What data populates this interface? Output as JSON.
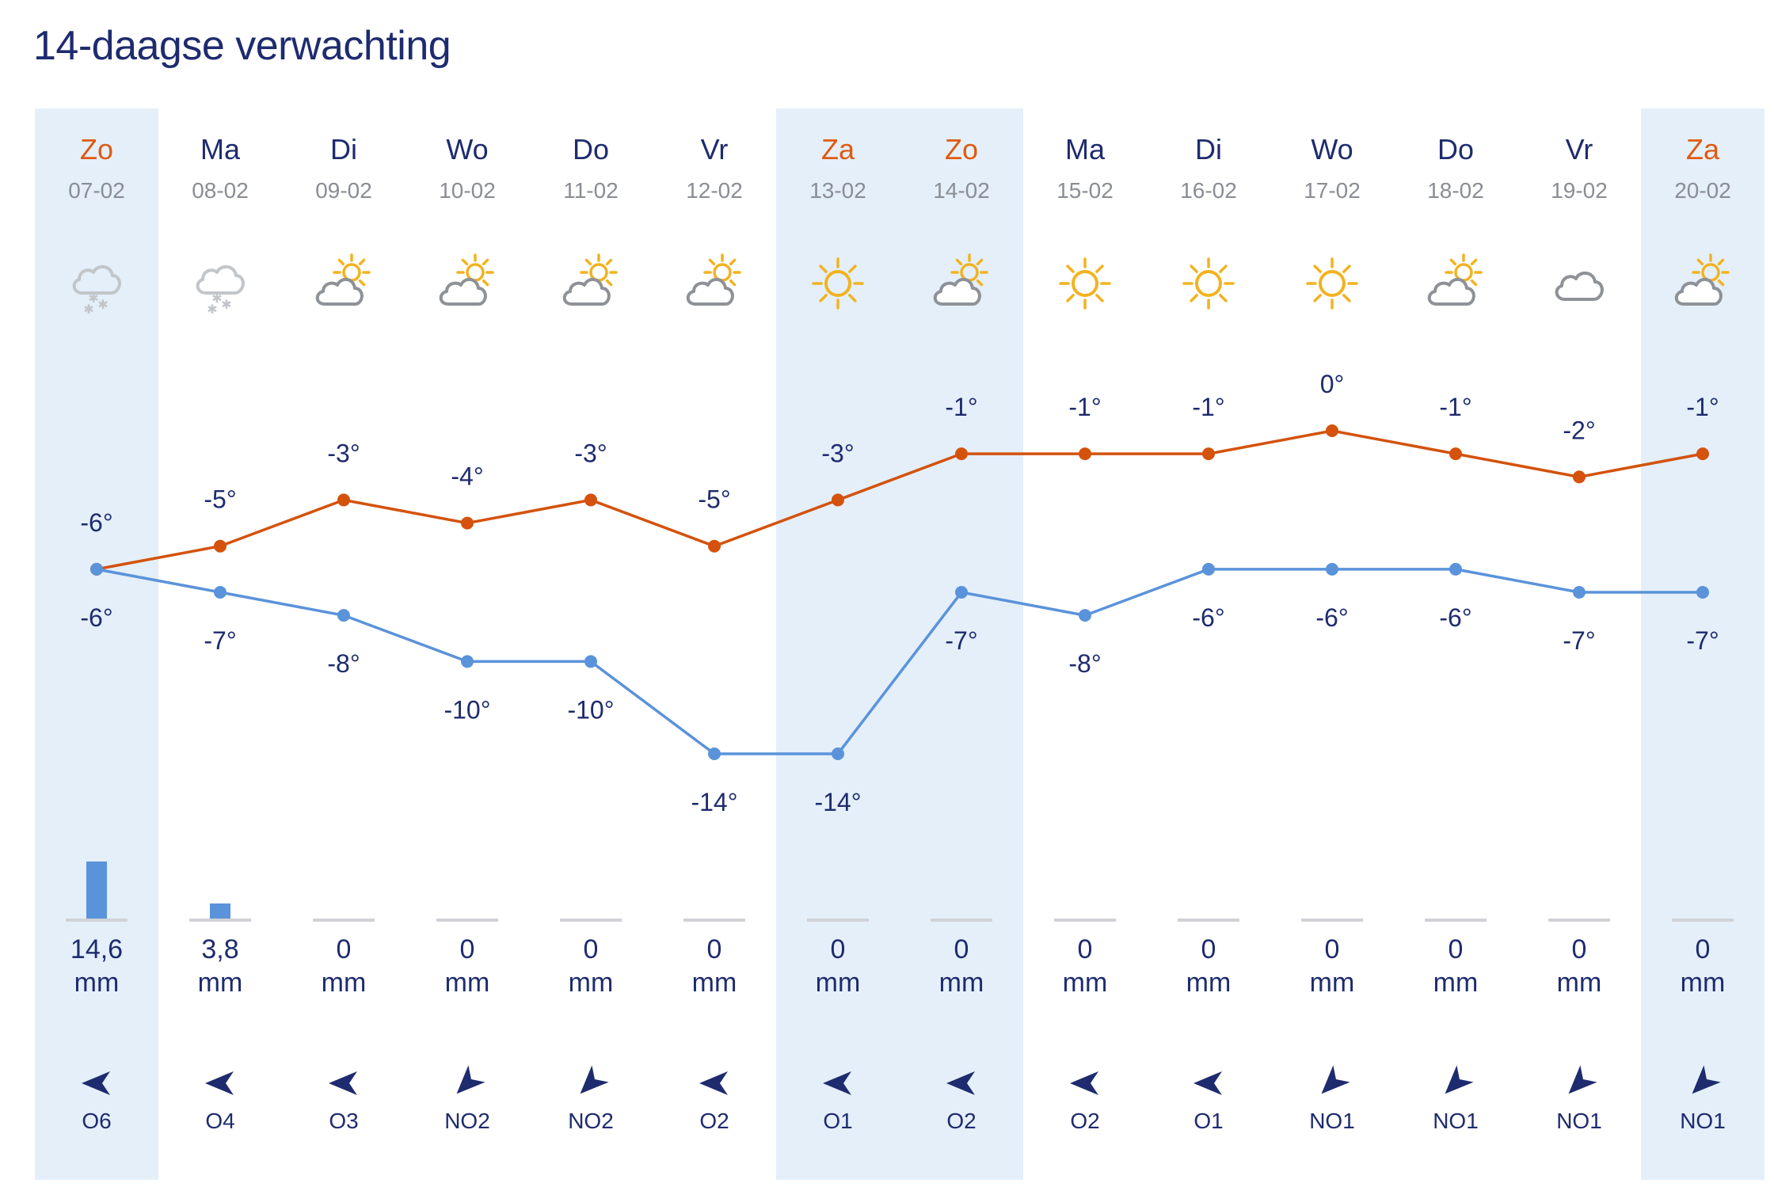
{
  "title": "14-daagse verwachting",
  "colors": {
    "max": "#d4520c",
    "min": "#5a93da",
    "weekend_text": "#e05a10",
    "text": "#1e2b6e",
    "band": "#e4effa"
  },
  "chart_data": {
    "type": "line",
    "categories": [
      "Zo",
      "Ma",
      "Di",
      "Wo",
      "Do",
      "Vr",
      "Za",
      "Zo",
      "Ma",
      "Di",
      "Wo",
      "Do",
      "Vr",
      "Za"
    ],
    "dates": [
      "07-02",
      "08-02",
      "09-02",
      "10-02",
      "11-02",
      "12-02",
      "13-02",
      "14-02",
      "15-02",
      "16-02",
      "17-02",
      "18-02",
      "19-02",
      "20-02"
    ],
    "weekend": [
      true,
      false,
      false,
      false,
      false,
      false,
      true,
      true,
      false,
      false,
      false,
      false,
      false,
      true
    ],
    "series": [
      {
        "values": [
          -6,
          -5,
          -3,
          -4,
          -3,
          -5,
          -3,
          -1,
          -1,
          -1,
          0,
          -1,
          -2,
          -1
        ]
      },
      {
        "values": [
          -6,
          -7,
          -8,
          -10,
          -10,
          -14,
          -14,
          -7,
          -8,
          -6,
          -6,
          -6,
          -7,
          -7
        ]
      }
    ],
    "ylim": [
      -14,
      0
    ],
    "precipitation_mm": [
      14.6,
      3.8,
      0,
      0,
      0,
      0,
      0,
      0,
      0,
      0,
      0,
      0,
      0,
      0
    ],
    "precipitation_labels": [
      "14,6",
      "3,8",
      "0",
      "0",
      "0",
      "0",
      "0",
      "0",
      "0",
      "0",
      "0",
      "0",
      "0",
      "0"
    ],
    "precipitation_unit": "mm",
    "icons": [
      "snow-cloud-icon",
      "snow-cloud-icon",
      "partly-cloudy-icon",
      "partly-cloudy-icon",
      "partly-cloudy-icon",
      "partly-cloudy-icon",
      "sun-icon",
      "partly-cloudy-icon",
      "sun-icon",
      "sun-icon",
      "sun-icon",
      "partly-cloudy-icon",
      "cloud-icon",
      "partly-cloudy-icon"
    ],
    "wind": [
      "O6",
      "O4",
      "O3",
      "NO2",
      "NO2",
      "O2",
      "O1",
      "O2",
      "O2",
      "O1",
      "NO1",
      "NO1",
      "NO1",
      "NO1"
    ]
  }
}
